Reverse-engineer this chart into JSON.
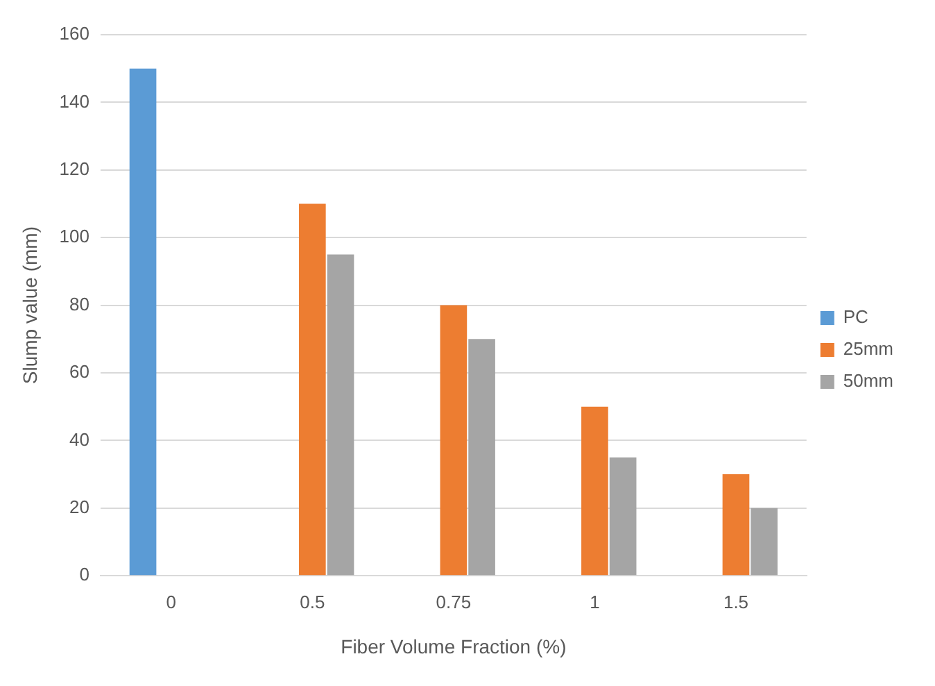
{
  "chart_data": {
    "type": "bar",
    "xlabel": "Fiber Volume Fraction (%)",
    "ylabel": "Slump value (mm)",
    "categories": [
      "0",
      "0.5",
      "0.75",
      "1",
      "1.5"
    ],
    "series": [
      {
        "name": "PC",
        "color": "#5b9bd5",
        "values": [
          150,
          null,
          null,
          null,
          null
        ]
      },
      {
        "name": "25mm",
        "color": "#ed7d31",
        "values": [
          null,
          110,
          80,
          50,
          30
        ]
      },
      {
        "name": "50mm",
        "color": "#a5a5a5",
        "values": [
          null,
          95,
          70,
          35,
          20
        ]
      }
    ],
    "ylim": [
      0,
      160
    ],
    "yticks": [
      0,
      20,
      40,
      60,
      80,
      100,
      120,
      140,
      160
    ],
    "grid": "y",
    "legend": "right"
  }
}
